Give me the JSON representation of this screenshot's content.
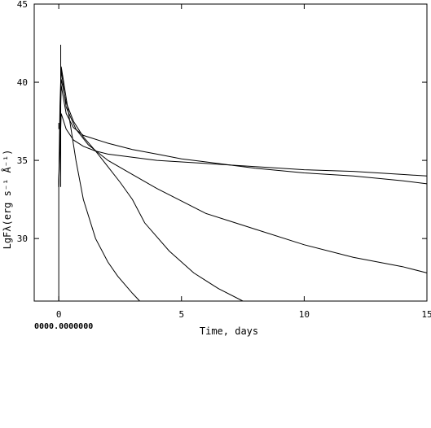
{
  "chart_data": {
    "type": "line",
    "title": "",
    "xlabel": "Time, days",
    "ylabel": "LgFλ(erg s⁻¹ Å⁻¹)",
    "xlim": [
      -1,
      15
    ],
    "ylim": [
      26,
      45
    ],
    "xticks": [
      0,
      5,
      10,
      15
    ],
    "xtick_labels": [
      "0",
      "5",
      "10",
      "15"
    ],
    "yticks": [
      30,
      35,
      40,
      45
    ],
    "ytick_labels": [
      "30",
      "35",
      "40",
      "45"
    ],
    "grid": false,
    "legend": "none",
    "overlap_text": "0000.0000000",
    "series": [
      {
        "values": [
          [
            0,
            33.3
          ],
          [
            0.05,
            38.5
          ],
          [
            0.1,
            41.0
          ],
          [
            0.2,
            40.0
          ],
          [
            0.4,
            38.0
          ],
          [
            0.7,
            35.0
          ],
          [
            1.0,
            32.5
          ],
          [
            1.5,
            30.0
          ],
          [
            2.0,
            28.5
          ],
          [
            2.4,
            27.6
          ],
          [
            3.0,
            26.5
          ],
          [
            3.3,
            26.0
          ]
        ]
      },
      {
        "values": [
          [
            0,
            33.3
          ],
          [
            0.1,
            40.2
          ],
          [
            0.3,
            38.7
          ],
          [
            0.6,
            37.5
          ],
          [
            1.0,
            36.5
          ],
          [
            1.5,
            35.6
          ],
          [
            2.0,
            34.6
          ],
          [
            2.5,
            33.6
          ],
          [
            3.0,
            32.5
          ],
          [
            3.5,
            31.0
          ],
          [
            4.5,
            29.2
          ],
          [
            5.5,
            27.8
          ],
          [
            6.5,
            26.8
          ],
          [
            7.5,
            26.0
          ]
        ]
      },
      {
        "values": [
          [
            0,
            33.3
          ],
          [
            0.1,
            40.8
          ],
          [
            0.3,
            38.4
          ],
          [
            0.7,
            37.0
          ],
          [
            1.2,
            36.0
          ],
          [
            2.0,
            35.0
          ],
          [
            3.0,
            34.1
          ],
          [
            4.0,
            33.2
          ],
          [
            5.0,
            32.4
          ],
          [
            6.0,
            31.6
          ],
          [
            7.0,
            31.1
          ],
          [
            8.0,
            30.6
          ],
          [
            10.0,
            29.6
          ],
          [
            12.0,
            28.8
          ],
          [
            14.0,
            28.2
          ],
          [
            15.0,
            27.8
          ]
        ]
      },
      {
        "values": [
          [
            0,
            33.3
          ],
          [
            0.1,
            39.8
          ],
          [
            0.3,
            38.0
          ],
          [
            0.6,
            37.1
          ],
          [
            1.0,
            36.6
          ],
          [
            2.0,
            36.1
          ],
          [
            3.0,
            35.7
          ],
          [
            4.0,
            35.4
          ],
          [
            5.0,
            35.1
          ],
          [
            6.0,
            34.9
          ],
          [
            7.0,
            34.7
          ],
          [
            8.0,
            34.5
          ],
          [
            10.0,
            34.2
          ],
          [
            12.0,
            34.0
          ],
          [
            14.0,
            33.7
          ],
          [
            15.0,
            33.5
          ]
        ]
      },
      {
        "values": [
          [
            0,
            33.3
          ],
          [
            0.1,
            38.0
          ],
          [
            0.3,
            37.0
          ],
          [
            0.6,
            36.3
          ],
          [
            1.0,
            35.9
          ],
          [
            1.5,
            35.6
          ],
          [
            2.0,
            35.4
          ],
          [
            3.0,
            35.2
          ],
          [
            4.0,
            35.0
          ],
          [
            5.0,
            34.9
          ],
          [
            6.0,
            34.8
          ],
          [
            8.0,
            34.6
          ],
          [
            10.0,
            34.4
          ],
          [
            12.0,
            34.3
          ],
          [
            14.0,
            34.1
          ],
          [
            15.0,
            34.0
          ]
        ]
      }
    ],
    "spikes": [
      {
        "x": 0.08,
        "y_from": 33.3,
        "y_to": 42.4
      },
      {
        "x": 0.0,
        "y_from": 37.0,
        "y_to": 37.4
      }
    ]
  }
}
